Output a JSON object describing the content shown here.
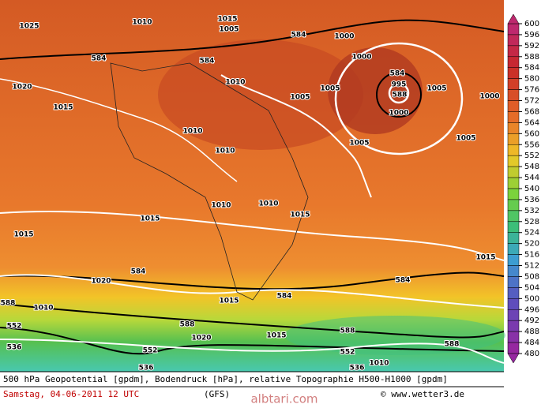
{
  "map": {
    "title": "500 hPa Geopotential [gpdm], Bodendruck [hPa], relative Topographie H500-H1000 [gpdm]",
    "date": "Samstag, 04-06-2011  12 UTC",
    "model": "(GFS)",
    "credit": "© www.wetter3.de",
    "watermark": "albtari.com",
    "colorbar": {
      "levels": [
        600,
        596,
        592,
        588,
        584,
        580,
        576,
        572,
        568,
        564,
        560,
        556,
        552,
        548,
        544,
        540,
        536,
        532,
        528,
        524,
        520,
        516,
        512,
        508,
        504,
        500,
        496,
        492,
        488,
        484,
        480
      ]
    },
    "contour_labels": [
      1025,
      1010,
      1015,
      1005,
      584,
      584,
      584,
      1020,
      1015,
      1010,
      1005,
      1010,
      1010,
      1005,
      1000,
      1000,
      584,
      995,
      588,
      1000,
      1005,
      1005,
      1000,
      1005,
      1010,
      1010,
      1015,
      1015,
      1015,
      1015,
      1020,
      584,
      584,
      584,
      1015,
      588,
      1010,
      588,
      552,
      536,
      1020,
      1015,
      588,
      588,
      552,
      552,
      536,
      536,
      1010
    ]
  }
}
